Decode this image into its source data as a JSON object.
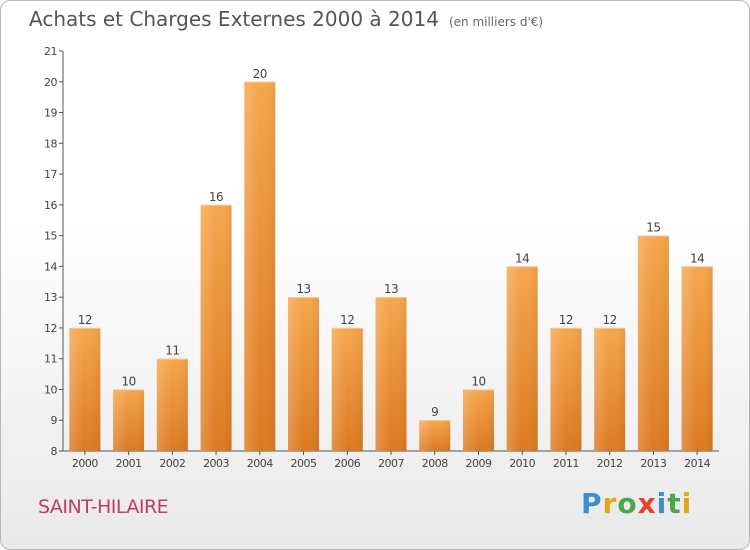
{
  "title": "Achats et Charges Externes 2000 à 2014",
  "unit": "(en milliers d'€)",
  "commune": "SAINT-HILAIRE",
  "logo": {
    "text": "Proxiti",
    "letters": [
      {
        "char": "P",
        "color": "#3a8fd1"
      },
      {
        "char": "r",
        "color": "#e8a317"
      },
      {
        "char": "o",
        "color": "#4aa84a"
      },
      {
        "char": "x",
        "color": "#e8432a"
      },
      {
        "char": "i",
        "color": "#3a8fd1"
      },
      {
        "char": "t",
        "color": "#4aa84a"
      },
      {
        "char": "i",
        "color": "#e8a317"
      }
    ]
  },
  "colors": {
    "bar_top": "#f6a64c",
    "bar_bottom": "#dc7a22",
    "text": "#444444"
  },
  "chart_data": {
    "type": "bar",
    "categories": [
      "2000",
      "2001",
      "2002",
      "2003",
      "2004",
      "2005",
      "2006",
      "2007",
      "2008",
      "2009",
      "2010",
      "2011",
      "2012",
      "2013",
      "2014"
    ],
    "values": [
      12,
      10,
      11,
      16,
      20,
      13,
      12,
      13,
      9,
      10,
      14,
      12,
      12,
      15,
      14
    ],
    "ylim": [
      8,
      21
    ],
    "yticks": [
      8,
      9,
      10,
      11,
      12,
      13,
      14,
      15,
      16,
      17,
      18,
      19,
      20,
      21
    ],
    "grid": false,
    "xlabel": "",
    "ylabel": ""
  }
}
